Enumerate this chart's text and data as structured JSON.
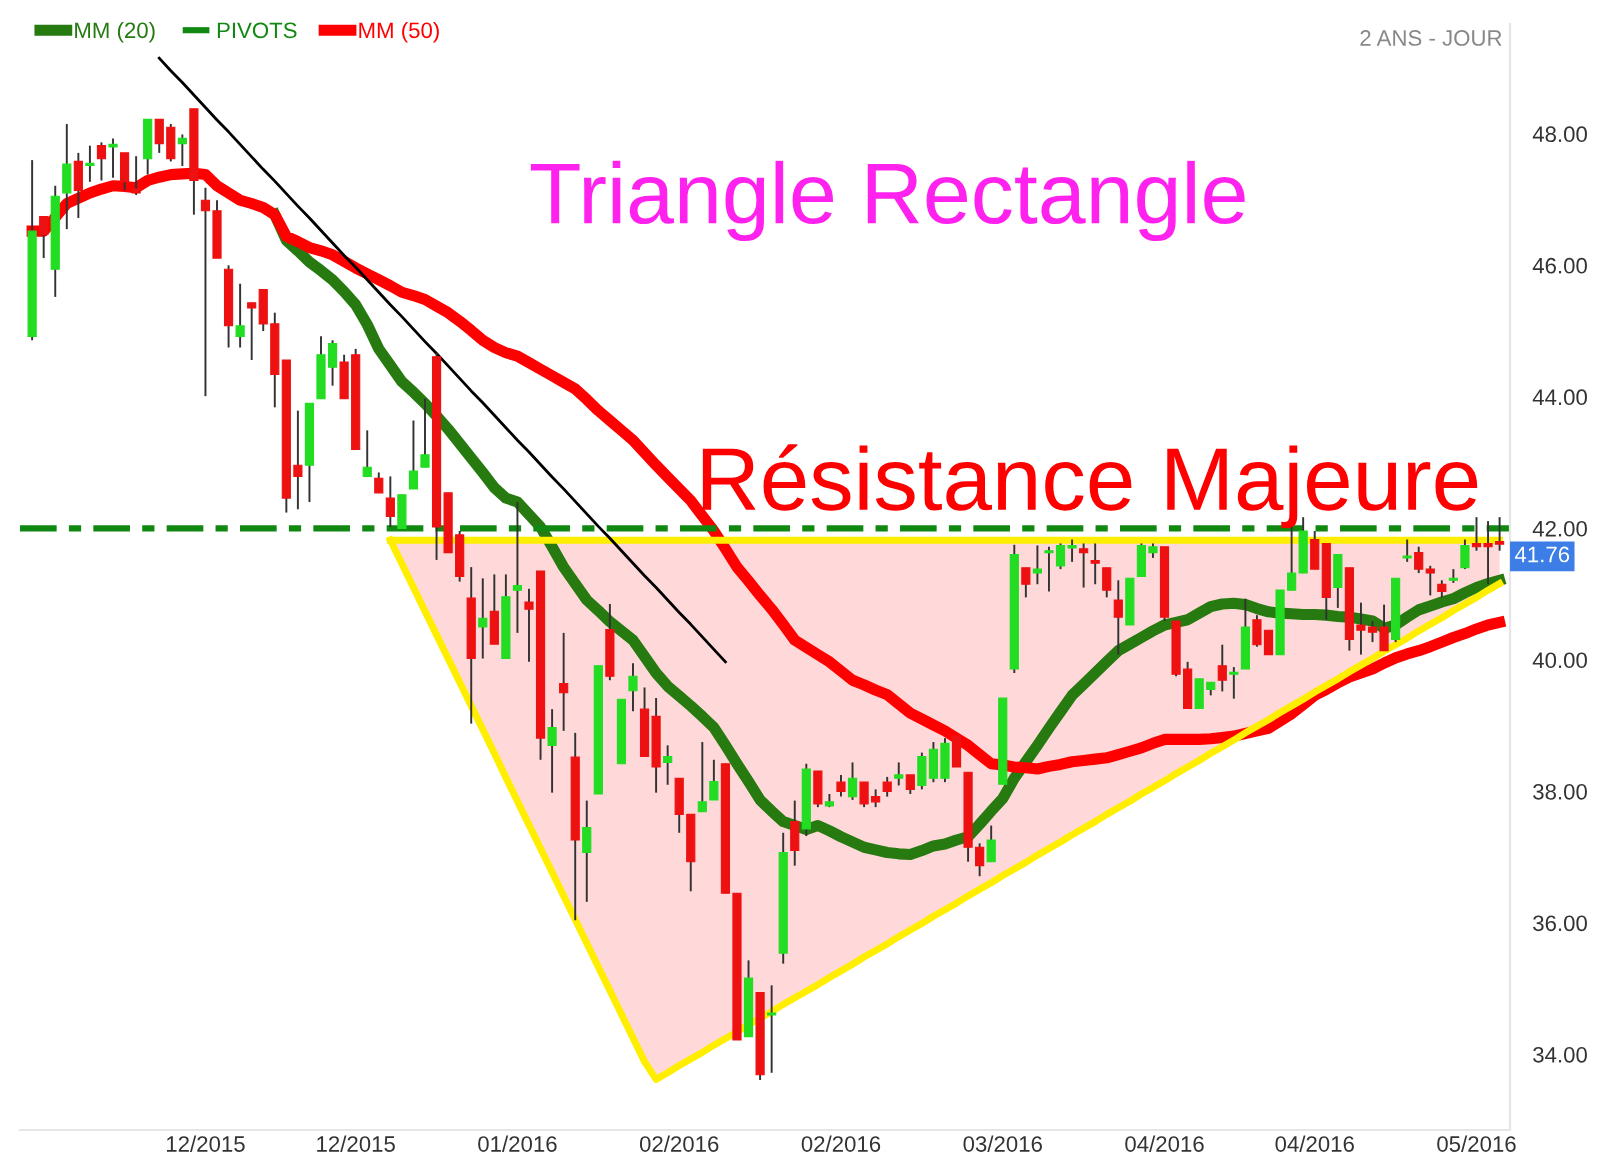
{
  "chart_data": {
    "type": "candlestick",
    "categories": [
      null,
      null,
      null,
      null,
      null,
      null,
      null,
      null,
      null,
      null,
      null,
      null,
      null,
      null,
      null,
      "12/2015",
      null,
      null,
      null,
      null,
      null,
      null,
      null,
      null,
      null,
      null,
      null,
      null,
      "12/2015",
      null,
      null,
      null,
      null,
      null,
      null,
      null,
      null,
      null,
      null,
      null,
      null,
      null,
      "01/2016",
      null,
      null,
      null,
      null,
      null,
      null,
      null,
      null,
      null,
      null,
      null,
      null,
      null,
      "02/2016",
      null,
      null,
      null,
      null,
      null,
      null,
      null,
      null,
      null,
      null,
      null,
      null,
      null,
      "02/2016",
      null,
      null,
      null,
      null,
      null,
      null,
      null,
      null,
      null,
      null,
      null,
      null,
      null,
      "03/2016",
      null,
      null,
      null,
      null,
      null,
      null,
      null,
      null,
      null,
      null,
      null,
      null,
      null,
      "04/2016",
      null,
      null,
      null,
      null,
      null,
      null,
      null,
      null,
      null,
      null,
      null,
      null,
      "04/2016",
      null,
      null,
      null,
      null,
      null,
      null,
      null,
      null,
      null,
      null,
      null,
      null,
      null,
      "05/2016",
      null,
      null
    ],
    "ohlc": [
      [
        44.92,
        47.6,
        44.86,
        46.52
      ],
      [
        46.74,
        46.74,
        46.11,
        46.47
      ],
      [
        45.94,
        47.21,
        45.52,
        47.05
      ],
      [
        47.1,
        48.15,
        46.55,
        47.54
      ],
      [
        47.58,
        47.71,
        46.72,
        47.14
      ],
      [
        47.52,
        47.82,
        47.27,
        47.54
      ],
      [
        47.82,
        47.87,
        47.29,
        47.62
      ],
      [
        47.8,
        47.93,
        47.33,
        47.84
      ],
      [
        47.71,
        47.71,
        47.14,
        47.27
      ],
      [
        47.16,
        47.66,
        47.07,
        47.1
      ],
      [
        47.62,
        48.22,
        47.38,
        48.22
      ],
      [
        48.22,
        48.22,
        47.71,
        47.85
      ],
      [
        48.1,
        48.15,
        47.58,
        47.62
      ],
      [
        47.85,
        47.99,
        47.51,
        47.93
      ],
      [
        48.38,
        48.38,
        46.77,
        47.29
      ],
      [
        46.99,
        47.18,
        44.01,
        46.83
      ],
      [
        46.83,
        46.99,
        46.11,
        46.11
      ],
      [
        45.94,
        46.0,
        44.75,
        45.08
      ],
      [
        44.92,
        45.72,
        44.75,
        45.08
      ],
      [
        45.43,
        45.43,
        44.56,
        45.35
      ],
      [
        45.63,
        45.63,
        45.0,
        45.11
      ],
      [
        45.11,
        45.28,
        43.84,
        44.34
      ],
      [
        44.56,
        44.56,
        42.24,
        42.46
      ],
      [
        42.96,
        43.79,
        42.29,
        42.79
      ],
      [
        42.96,
        43.9,
        42.4,
        43.9
      ],
      [
        43.97,
        44.92,
        43.97,
        44.64
      ],
      [
        44.45,
        44.86,
        44.17,
        44.81
      ],
      [
        44.53,
        44.64,
        43.97,
        43.97
      ],
      [
        44.64,
        44.73,
        43.2,
        43.2
      ],
      [
        42.79,
        43.49,
        42.79,
        42.93
      ],
      [
        42.76,
        42.85,
        42.54,
        42.54
      ],
      [
        42.46,
        42.79,
        42.02,
        42.18
      ],
      [
        42.0,
        42.51,
        42.0,
        42.51
      ],
      [
        42.6,
        43.64,
        42.6,
        42.87
      ],
      [
        42.93,
        43.97,
        42.93,
        43.12
      ],
      [
        44.61,
        44.67,
        41.52,
        42.02
      ],
      [
        42.54,
        42.54,
        41.63,
        41.63
      ],
      [
        41.9,
        41.96,
        41.19,
        41.27
      ],
      [
        40.94,
        41.41,
        39.03,
        40.02
      ],
      [
        40.5,
        41.24,
        40.02,
        40.63
      ],
      [
        40.74,
        41.3,
        40.24,
        40.24
      ],
      [
        40.02,
        41.3,
        40.02,
        40.96
      ],
      [
        41.06,
        42.4,
        40.41,
        41.13
      ],
      [
        40.88,
        41.08,
        39.97,
        40.77
      ],
      [
        41.35,
        41.35,
        38.48,
        38.81
      ],
      [
        38.7,
        39.25,
        37.98,
        38.97
      ],
      [
        39.64,
        40.41,
        38.92,
        39.5
      ],
      [
        38.52,
        38.89,
        36.04,
        37.26
      ],
      [
        37.07,
        37.86,
        36.32,
        37.45
      ],
      [
        37.96,
        39.91,
        37.96,
        39.91
      ],
      [
        40.46,
        40.85,
        39.69,
        39.75
      ],
      [
        38.42,
        39.4,
        38.42,
        39.4
      ],
      [
        39.53,
        39.95,
        39.22,
        39.75
      ],
      [
        39.25,
        39.58,
        38.53,
        38.53
      ],
      [
        39.14,
        39.42,
        37.98,
        38.37
      ],
      [
        38.44,
        38.7,
        38.1,
        38.53
      ],
      [
        38.2,
        38.2,
        37.37,
        37.65
      ],
      [
        37.65,
        37.65,
        36.48,
        36.93
      ],
      [
        37.69,
        38.75,
        37.69,
        37.84
      ],
      [
        37.87,
        38.48,
        37.87,
        38.15
      ],
      [
        38.42,
        38.42,
        36.45,
        36.45
      ],
      [
        36.45,
        36.45,
        34.22,
        34.22
      ],
      [
        34.27,
        35.43,
        34.27,
        35.16
      ],
      [
        34.94,
        34.94,
        33.61,
        33.69
      ],
      [
        34.6,
        35.05,
        33.72,
        34.63
      ],
      [
        35.54,
        37.37,
        35.38,
        37.07
      ],
      [
        37.54,
        37.86,
        36.87,
        37.1
      ],
      [
        37.43,
        38.42,
        37.32,
        38.34
      ],
      [
        38.31,
        38.31,
        37.76,
        37.81
      ],
      [
        37.78,
        37.96,
        37.76,
        37.84
      ],
      [
        38.14,
        38.25,
        37.92,
        38.0
      ],
      [
        37.92,
        38.44,
        37.87,
        38.2
      ],
      [
        38.14,
        38.14,
        37.76,
        37.81
      ],
      [
        37.92,
        38.03,
        37.76,
        37.84
      ],
      [
        38.14,
        38.22,
        37.92,
        38.0
      ],
      [
        38.2,
        38.44,
        38.09,
        38.25
      ],
      [
        38.25,
        38.25,
        37.96,
        38.03
      ],
      [
        38.09,
        38.59,
        38.03,
        38.53
      ],
      [
        38.2,
        38.75,
        38.14,
        38.64
      ],
      [
        38.2,
        38.81,
        38.14,
        38.73
      ],
      [
        38.84,
        38.84,
        38.37,
        38.37
      ],
      [
        38.29,
        38.29,
        36.93,
        37.15
      ],
      [
        37.15,
        37.21,
        36.71,
        36.87
      ],
      [
        36.93,
        37.48,
        36.93,
        37.26
      ],
      [
        38.11,
        39.42,
        38.11,
        39.42
      ],
      [
        39.86,
        41.75,
        39.8,
        41.6
      ],
      [
        41.4,
        41.4,
        40.95,
        41.15
      ],
      [
        41.32,
        41.74,
        41.15,
        41.38
      ],
      [
        41.63,
        41.72,
        41.04,
        41.66
      ],
      [
        41.43,
        41.77,
        41.38,
        41.74
      ],
      [
        41.7,
        41.83,
        41.49,
        41.74
      ],
      [
        41.69,
        41.77,
        41.1,
        41.63
      ],
      [
        41.51,
        41.77,
        41.15,
        41.47
      ],
      [
        41.4,
        41.4,
        40.95,
        41.06
      ],
      [
        40.91,
        41.21,
        40.08,
        40.65
      ],
      [
        40.53,
        41.24,
        40.53,
        41.24
      ],
      [
        41.27,
        41.77,
        41.27,
        41.74
      ],
      [
        41.63,
        41.77,
        41.55,
        41.72
      ],
      [
        41.72,
        41.72,
        40.59,
        40.65
      ],
      [
        40.59,
        40.59,
        39.75,
        39.78
      ],
      [
        39.86,
        39.97,
        39.26,
        39.26
      ],
      [
        39.26,
        39.71,
        39.26,
        39.71
      ],
      [
        39.55,
        39.66,
        39.46,
        39.66
      ],
      [
        39.91,
        40.23,
        39.52,
        39.69
      ],
      [
        39.78,
        39.89,
        39.41,
        39.8
      ],
      [
        39.86,
        40.93,
        39.86,
        40.5
      ],
      [
        40.61,
        40.68,
        40.2,
        40.23
      ],
      [
        40.45,
        40.45,
        40.08,
        40.08
      ],
      [
        40.08,
        41.06,
        40.08,
        41.06
      ],
      [
        41.06,
        42.11,
        41.06,
        41.32
      ],
      [
        41.32,
        42.17,
        41.32,
        41.96
      ],
      [
        41.83,
        41.96,
        41.38,
        41.38
      ],
      [
        41.77,
        41.77,
        40.61,
        40.95
      ],
      [
        41.1,
        41.6,
        40.79,
        41.6
      ],
      [
        41.4,
        41.4,
        40.14,
        40.31
      ],
      [
        40.53,
        40.87,
        40.08,
        40.45
      ],
      [
        40.5,
        40.59,
        40.27,
        40.42
      ],
      [
        40.5,
        40.84,
        40.14,
        40.14
      ],
      [
        40.31,
        41.24,
        40.27,
        41.24
      ],
      [
        41.55,
        41.83,
        41.49,
        41.58
      ],
      [
        41.63,
        41.72,
        41.32,
        41.38
      ],
      [
        41.38,
        41.43,
        40.98,
        41.32
      ],
      [
        41.15,
        41.21,
        40.95,
        41.04
      ],
      [
        41.21,
        41.38,
        41.17,
        41.24
      ],
      [
        41.4,
        41.83,
        41.38,
        41.74
      ],
      [
        41.77,
        42.17,
        41.66,
        41.72
      ],
      [
        41.77,
        42.11,
        41.15,
        41.72
      ],
      [
        41.8,
        42.17,
        41.66,
        41.76
      ]
    ],
    "series": [
      {
        "type": "line",
        "color": "#ffee00",
        "values": [
          null,
          null,
          null,
          null,
          null,
          null,
          null,
          null,
          null,
          null,
          null,
          null,
          null,
          null,
          null,
          null,
          null,
          null,
          null,
          null,
          null,
          null,
          null,
          null,
          null,
          null,
          null,
          null,
          null,
          null,
          null,
          41.82,
          41.82,
          41.82,
          41.82,
          41.82,
          41.82,
          41.82,
          41.82,
          41.82,
          41.82,
          41.82,
          41.82,
          41.82,
          41.82,
          41.82,
          41.82,
          41.82,
          41.82,
          41.82,
          41.82,
          41.82,
          41.82,
          41.82,
          41.82,
          41.82,
          41.82,
          41.82,
          41.82,
          41.82,
          41.82,
          41.82,
          41.82,
          41.82,
          41.82,
          41.82,
          41.82,
          41.82,
          41.82,
          41.82,
          41.82,
          41.82,
          41.82,
          41.82,
          41.82,
          41.82,
          41.82,
          41.82,
          41.82,
          41.82,
          41.82,
          41.82,
          41.82,
          41.82,
          41.82,
          41.82,
          41.82,
          41.82,
          41.82,
          41.82,
          41.82,
          41.82,
          41.82,
          41.82,
          41.82,
          41.82,
          41.82,
          41.82,
          41.82,
          41.82,
          41.82,
          41.82,
          41.82,
          41.82,
          41.82,
          41.82,
          41.82,
          41.82,
          41.82,
          41.82,
          41.82,
          41.82,
          41.82,
          41.82,
          41.82,
          41.82,
          41.82,
          41.82,
          41.82,
          41.82,
          41.82,
          41.82,
          41.82,
          41.82,
          41.82,
          41.82,
          41.82,
          41.82
        ]
      },
      {
        "type": "line",
        "color": "#ffee00",
        "values": [
          null,
          null,
          null,
          null,
          null,
          null,
          null,
          null,
          null,
          null,
          null,
          null,
          null,
          null,
          null,
          null,
          null,
          null,
          null,
          null,
          null,
          null,
          null,
          null,
          null,
          null,
          null,
          null,
          null,
          null,
          null,
          41.82,
          41.46,
          41.1,
          40.74,
          40.38,
          40.02,
          39.66,
          39.3,
          38.94,
          38.58,
          38.21,
          37.85,
          37.49,
          37.13,
          36.77,
          36.41,
          36.05,
          35.69,
          35.33,
          34.97,
          34.61,
          34.25,
          33.89,
          33.62,
          33.72,
          33.83,
          33.93,
          34.03,
          34.14,
          34.24,
          34.34,
          34.45,
          34.55,
          34.65,
          34.76,
          34.86,
          34.96,
          35.06,
          35.17,
          35.27,
          35.37,
          35.48,
          35.58,
          35.68,
          35.79,
          35.89,
          35.99,
          36.1,
          36.2,
          36.3,
          36.41,
          36.51,
          36.61,
          36.72,
          36.82,
          36.92,
          37.03,
          37.13,
          37.23,
          37.34,
          37.44,
          37.54,
          37.65,
          37.75,
          37.85,
          37.96,
          38.06,
          38.16,
          38.27,
          38.37,
          38.47,
          38.58,
          38.68,
          38.78,
          38.89,
          38.99,
          39.09,
          39.2,
          39.3,
          39.4,
          39.51,
          39.61,
          39.71,
          39.82,
          39.92,
          40.02,
          40.13,
          40.23,
          40.33,
          40.44,
          40.54,
          40.64,
          40.75,
          40.85,
          40.95,
          41.06,
          41.16
        ]
      },
      {
        "type": "line",
        "color": "#000000",
        "values": [
          null,
          null,
          null,
          null,
          null,
          null,
          null,
          null,
          null,
          null,
          null,
          49.15,
          48.96,
          48.78,
          48.59,
          48.4,
          48.21,
          48.03,
          47.84,
          47.65,
          47.46,
          47.28,
          47.09,
          46.9,
          46.72,
          46.53,
          46.34,
          46.15,
          45.97,
          45.78,
          45.59,
          45.4,
          45.22,
          45.03,
          44.84,
          44.66,
          44.47,
          44.28,
          44.09,
          43.91,
          43.72,
          43.53,
          43.34,
          43.16,
          42.97,
          42.78,
          42.6,
          42.41,
          42.22,
          42.03,
          41.85,
          41.66,
          41.47,
          41.28,
          41.1,
          40.91,
          40.72,
          40.54,
          40.35,
          40.16,
          39.97,
          null,
          null,
          null,
          null,
          null,
          null,
          null,
          null,
          null,
          null,
          null,
          null,
          null,
          null,
          null,
          null,
          null,
          null,
          null,
          null,
          null,
          null,
          null,
          null,
          null,
          null,
          null,
          null,
          null,
          null,
          null,
          null,
          null,
          null,
          null,
          null,
          null,
          null,
          null,
          null,
          null,
          null,
          null,
          null,
          null,
          null,
          null,
          null,
          null,
          null,
          null,
          null,
          null,
          null,
          null,
          null,
          null,
          null,
          null,
          null,
          null,
          null,
          null,
          null,
          null,
          null,
          null
        ]
      },
      {
        "type": "line",
        "name": "MM (20)",
        "color": "#267a10",
        "values": [
          null,
          null,
          null,
          null,
          null,
          null,
          null,
          null,
          null,
          null,
          null,
          null,
          null,
          null,
          null,
          null,
          null,
          null,
          null,
          null,
          null,
          46.77,
          46.38,
          46.22,
          46.05,
          45.92,
          45.78,
          45.6,
          45.4,
          45.1,
          44.73,
          44.48,
          44.23,
          44.07,
          43.9,
          43.71,
          43.51,
          43.29,
          43.07,
          42.85,
          42.62,
          42.46,
          42.4,
          42.21,
          42.02,
          41.72,
          41.41,
          41.16,
          40.91,
          40.75,
          40.58,
          40.44,
          40.3,
          40.05,
          39.8,
          39.6,
          39.45,
          39.3,
          39.14,
          38.97,
          38.7,
          38.42,
          38.15,
          37.87,
          37.7,
          37.54,
          37.48,
          37.42,
          37.48,
          37.4,
          37.31,
          37.23,
          37.15,
          37.11,
          37.07,
          37.05,
          37.04,
          37.1,
          37.17,
          37.2,
          37.26,
          37.31,
          37.5,
          37.7,
          37.89,
          38.2,
          38.45,
          38.7,
          38.96,
          39.21,
          39.46,
          39.63,
          39.8,
          39.97,
          40.14,
          40.24,
          40.34,
          40.44,
          40.53,
          40.57,
          40.61,
          40.71,
          40.81,
          40.85,
          40.86,
          40.84,
          40.78,
          40.73,
          40.71,
          40.7,
          40.69,
          40.69,
          40.68,
          40.66,
          40.65,
          40.62,
          40.59,
          40.48,
          40.53,
          40.65,
          40.76,
          40.82,
          40.88,
          40.93,
          41.02,
          41.1,
          41.16,
          41.21
        ]
      },
      {
        "type": "line",
        "name": "MM (50)",
        "color": "#ff0000",
        "values": [
          46.52,
          46.52,
          46.73,
          46.94,
          47.02,
          47.1,
          47.16,
          47.21,
          47.2,
          47.18,
          47.29,
          47.34,
          47.38,
          47.39,
          47.4,
          47.38,
          47.21,
          47.1,
          46.99,
          46.94,
          46.88,
          46.77,
          46.44,
          46.36,
          46.27,
          46.22,
          46.16,
          46.06,
          45.96,
          45.87,
          45.78,
          45.69,
          45.59,
          45.54,
          45.48,
          45.38,
          45.28,
          45.15,
          45.01,
          44.86,
          44.75,
          44.67,
          44.62,
          44.52,
          44.42,
          44.32,
          44.22,
          44.12,
          43.96,
          43.79,
          43.64,
          43.49,
          43.34,
          43.15,
          42.96,
          42.78,
          42.6,
          42.42,
          42.19,
          41.96,
          41.69,
          41.41,
          41.2,
          40.98,
          40.77,
          40.54,
          40.3,
          40.19,
          40.08,
          39.97,
          39.83,
          39.69,
          39.62,
          39.54,
          39.47,
          39.33,
          39.19,
          39.1,
          39.01,
          38.92,
          38.81,
          38.7,
          38.56,
          38.42,
          38.4,
          38.37,
          38.36,
          38.34,
          38.38,
          38.41,
          38.45,
          38.47,
          38.49,
          38.51,
          38.56,
          38.61,
          38.66,
          38.73,
          38.79,
          38.79,
          38.79,
          38.79,
          38.8,
          38.82,
          38.84,
          38.88,
          38.92,
          38.96,
          39.07,
          39.18,
          39.32,
          39.46,
          39.55,
          39.65,
          39.74,
          39.8,
          39.86,
          39.95,
          40.03,
          40.09,
          40.14,
          40.2,
          40.27,
          40.34,
          40.4,
          40.47,
          40.53,
          40.57
        ]
      }
    ],
    "ref_lines": [
      {
        "axis": "y",
        "value": 42,
        "label": "PIVOTS",
        "color": "#118811",
        "line_style": "dashed"
      }
    ],
    "annotations": [
      "2 ANS - JOUR",
      "Triangle Rectangle",
      "Résistance Majeure",
      "41.76"
    ],
    "ylim": [
      32.85,
      49.67
    ],
    "yticks": [
      {
        "value": 34,
        "label": "34.00"
      },
      {
        "value": 36,
        "label": "36.00"
      },
      {
        "value": 38,
        "label": "38.00"
      },
      {
        "value": 40,
        "label": "40.00"
      },
      {
        "value": 42,
        "label": "42.00"
      },
      {
        "value": 44,
        "label": "44.00"
      },
      {
        "value": 46,
        "label": "46.00"
      },
      {
        "value": 48,
        "label": "48.00"
      }
    ],
    "legend": "top left"
  }
}
